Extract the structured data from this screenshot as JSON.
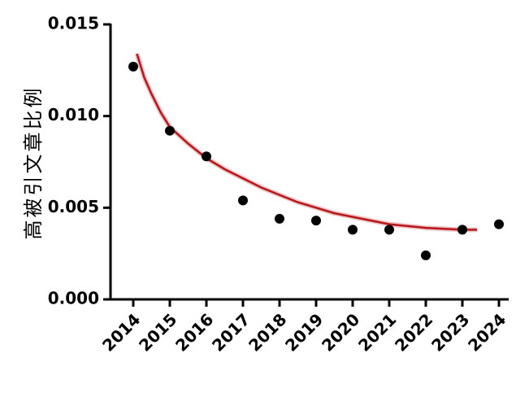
{
  "chart_data": {
    "type": "scatter",
    "y_label": "高被引文章比例",
    "categories": [
      "2014",
      "2015",
      "2016",
      "2017",
      "2018",
      "2019",
      "2020",
      "2021",
      "2022",
      "2023",
      "2024"
    ],
    "values": [
      0.0127,
      0.0092,
      0.0078,
      0.0054,
      0.0044,
      0.0043,
      0.0038,
      0.0038,
      0.0024,
      0.0038,
      0.0041
    ],
    "color": "#000000",
    "fit": {
      "color": "#b8161b",
      "x": [
        2014.1,
        2014.3,
        2014.5,
        2014.75,
        2015,
        2015.5,
        2016,
        2016.5,
        2017,
        2017.5,
        2018,
        2018.5,
        2019,
        2019.5,
        2020,
        2020.5,
        2021,
        2021.5,
        2022,
        2022.5,
        2023,
        2023.4
      ],
      "values": [
        0.0134,
        0.0121,
        0.0112,
        0.0102,
        0.0094,
        0.0085,
        0.0077,
        0.0071,
        0.0066,
        0.0061,
        0.0057,
        0.0053,
        0.005,
        0.0047,
        0.0045,
        0.0043,
        0.0041,
        0.004,
        0.0039,
        0.00385,
        0.0038,
        0.0038
      ]
    },
    "ylim": [
      0,
      0.015
    ],
    "yticks": [
      {
        "value": 0,
        "label": "0.000"
      },
      {
        "value": 0.005,
        "label": "0.005"
      },
      {
        "value": 0.01,
        "label": "0.010"
      },
      {
        "value": 0.015,
        "label": "0.015"
      }
    ]
  }
}
